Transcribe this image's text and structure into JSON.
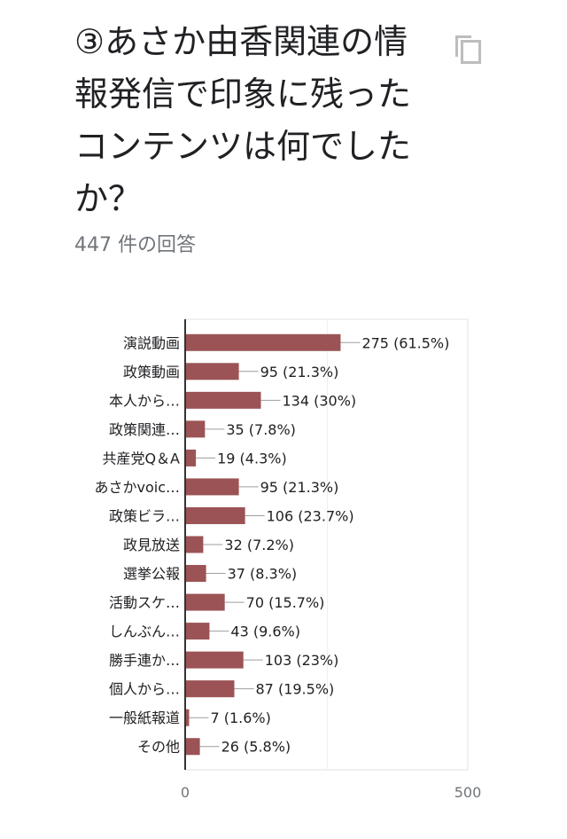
{
  "question": {
    "title": "③あさか由香関連の情報発信で印象に残ったコンテンツは何でしたか？",
    "response_count": "447 件の回答"
  },
  "colors": {
    "bar": "#9b5355",
    "text": "#202124",
    "muted": "#70757a",
    "grid": "#e0e0e0",
    "axis": "#333333"
  },
  "icons": {
    "copy": "copy-icon"
  },
  "chart_data": {
    "type": "bar",
    "orientation": "horizontal",
    "categories": [
      "演説動画",
      "政策動画",
      "本人から…",
      "政策関連…",
      "共産党Q＆A",
      "あさかvoic…",
      "政策ビラ…",
      "政見放送",
      "選挙公報",
      "活動スケ…",
      "しんぶん…",
      "勝手連か…",
      "個人から…",
      "一般紙報道",
      "その他"
    ],
    "values": [
      275,
      95,
      134,
      35,
      19,
      95,
      106,
      32,
      37,
      70,
      43,
      103,
      87,
      7,
      26
    ],
    "data_labels": [
      "275 (61.5%)",
      "95 (21.3%)",
      "134 (30%)",
      "35 (7.8%)",
      "19 (4.3%)",
      "95 (21.3%)",
      "106 (23.7%)",
      "32 (7.2%)",
      "37 (8.3%)",
      "70 (15.7%)",
      "43 (9.6%)",
      "103 (23%)",
      "87 (19.5%)",
      "7 (1.6%)",
      "26 (5.8%)"
    ],
    "xlim": [
      0,
      500
    ],
    "x_ticks": [
      0,
      500
    ],
    "grid": true
  }
}
